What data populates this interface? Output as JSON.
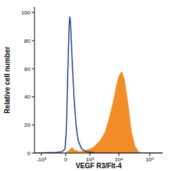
{
  "chart_data": {
    "type": "line",
    "x_label": "VEGF R3/Flt-4",
    "y_label": "Relative cell number",
    "log": "x",
    "xlim": [
      -1800,
      260000
    ],
    "xticks": [
      {
        "value": -1000,
        "label": "-10³"
      },
      0,
      {
        "value": 1000,
        "label": "10³"
      },
      {
        "value": 10000,
        "label": "10⁴"
      },
      {
        "value": 100000,
        "label": "10⁵"
      }
    ],
    "ylim": [
      0,
      104
    ],
    "yticks": [
      0,
      20,
      40,
      60,
      80,
      100
    ],
    "series": [
      {
        "type": "area",
        "color": "#f28c28",
        "x": [
          -1800,
          0,
          58,
          117,
          195,
          356,
          728,
          1348,
          2380,
          3500,
          4830,
          6290,
          8180,
          10100,
          12400,
          15300,
          19800,
          25600,
          33200,
          42900,
          58600,
          260000
        ],
        "values": [
          0,
          0,
          2,
          4,
          2,
          1,
          2,
          4,
          9,
          15,
          25,
          35,
          47,
          55,
          58,
          52,
          35,
          15,
          5,
          1,
          0,
          0
        ]
      },
      {
        "type": "line",
        "color": "#1f3f8f",
        "x": [
          -1800,
          -231,
          -58,
          -10,
          10,
          33,
          58,
          72,
          86,
          117,
          170,
          231,
          302,
          448,
          728,
          1800,
          260000
        ],
        "values": [
          0,
          0.5,
          1,
          3,
          15,
          55,
          90,
          97,
          93,
          70,
          40,
          20,
          9,
          3,
          1,
          0,
          0
        ]
      }
    ]
  }
}
